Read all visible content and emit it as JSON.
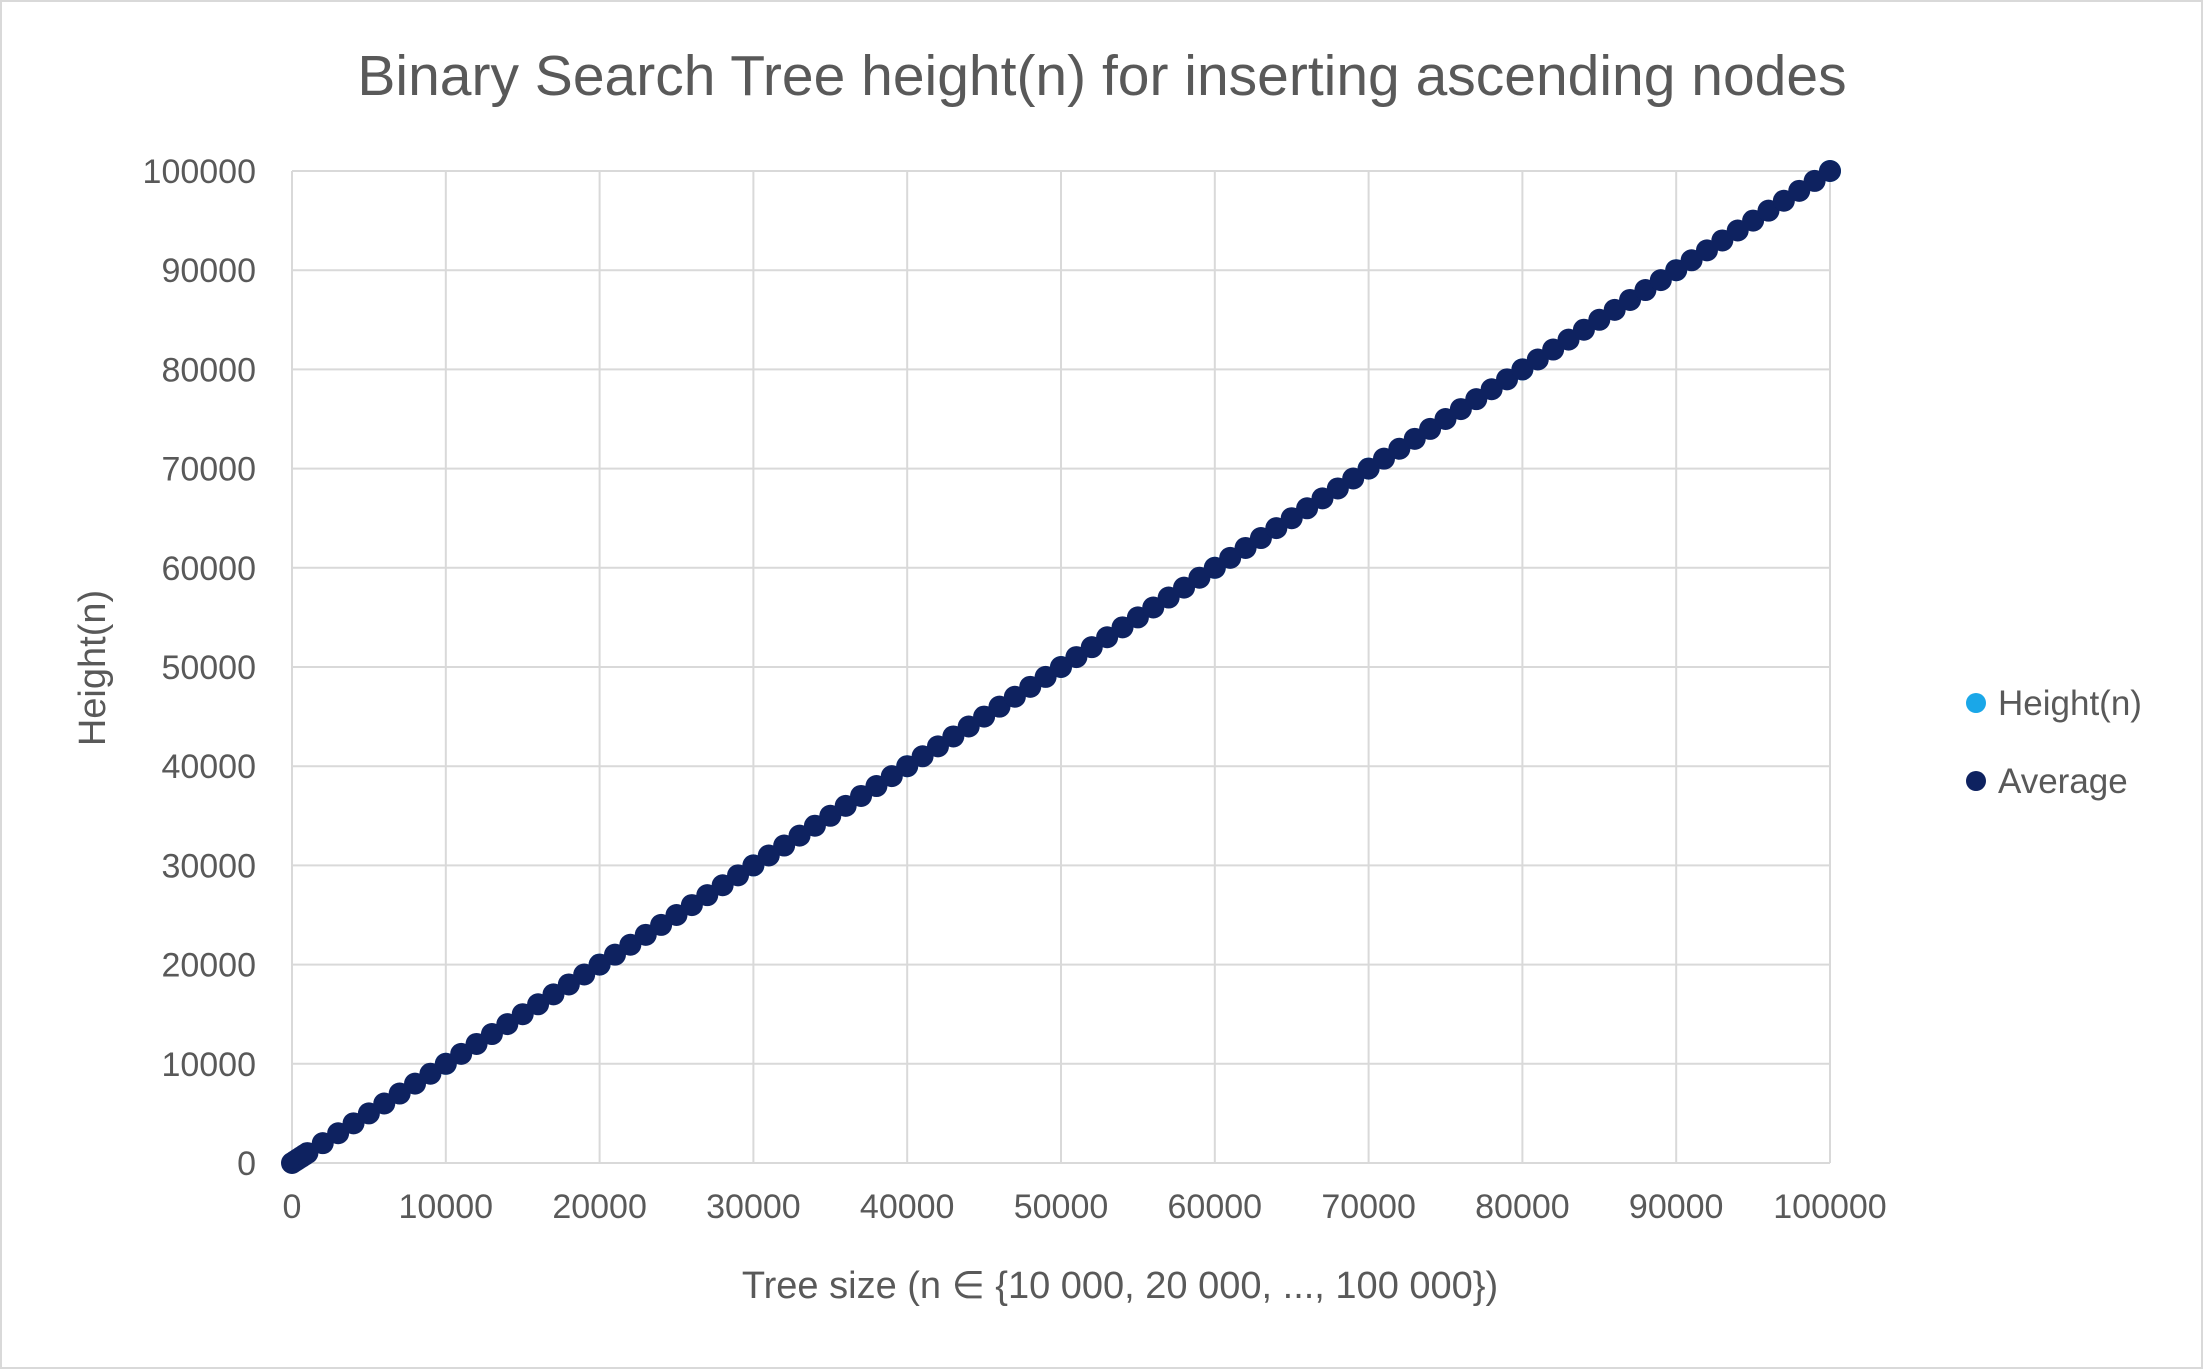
{
  "chart_data": {
    "type": "scatter",
    "title": "Binary Search Tree height(n) for inserting ascending nodes",
    "xlabel": "Tree size (n ∈ {10 000, 20 000, ..., 100 000})",
    "ylabel": "Height(n)",
    "xlim": [
      0,
      100000
    ],
    "ylim": [
      0,
      100000
    ],
    "xticks": [
      "0",
      "10000",
      "20000",
      "30000",
      "40000",
      "50000",
      "60000",
      "70000",
      "80000",
      "90000",
      "100000"
    ],
    "yticks": [
      "0",
      "10000",
      "20000",
      "30000",
      "40000",
      "50000",
      "60000",
      "70000",
      "80000",
      "90000",
      "100000"
    ],
    "grid": true,
    "legend_position": "right",
    "series": [
      {
        "name": "Height(n)",
        "color": "#1aa7e8",
        "x": [
          10000,
          20000,
          30000,
          40000,
          50000,
          60000,
          70000,
          80000,
          90000,
          100000
        ],
        "y": [
          10000,
          20000,
          30000,
          40000,
          50000,
          60000,
          70000,
          80000,
          90000,
          100000
        ]
      },
      {
        "name": "Average",
        "color": "#0e2260",
        "x": [
          0,
          200,
          400,
          600,
          800,
          1000,
          2000,
          3000,
          4000,
          5000,
          6000,
          7000,
          8000,
          9000,
          10000,
          11000,
          12000,
          13000,
          14000,
          15000,
          16000,
          17000,
          18000,
          19000,
          20000,
          21000,
          22000,
          23000,
          24000,
          25000,
          26000,
          27000,
          28000,
          29000,
          30000,
          31000,
          32000,
          33000,
          34000,
          35000,
          36000,
          37000,
          38000,
          39000,
          40000,
          41000,
          42000,
          43000,
          44000,
          45000,
          46000,
          47000,
          48000,
          49000,
          50000,
          51000,
          52000,
          53000,
          54000,
          55000,
          56000,
          57000,
          58000,
          59000,
          60000,
          61000,
          62000,
          63000,
          64000,
          65000,
          66000,
          67000,
          68000,
          69000,
          70000,
          71000,
          72000,
          73000,
          74000,
          75000,
          76000,
          77000,
          78000,
          79000,
          80000,
          81000,
          82000,
          83000,
          84000,
          85000,
          86000,
          87000,
          88000,
          89000,
          90000,
          91000,
          92000,
          93000,
          94000,
          95000,
          96000,
          97000,
          98000,
          99000,
          100000
        ],
        "y": [
          0,
          200,
          400,
          600,
          800,
          1000,
          2000,
          3000,
          4000,
          5000,
          6000,
          7000,
          8000,
          9000,
          10000,
          11000,
          12000,
          13000,
          14000,
          15000,
          16000,
          17000,
          18000,
          19000,
          20000,
          21000,
          22000,
          23000,
          24000,
          25000,
          26000,
          27000,
          28000,
          29000,
          30000,
          31000,
          32000,
          33000,
          34000,
          35000,
          36000,
          37000,
          38000,
          39000,
          40000,
          41000,
          42000,
          43000,
          44000,
          45000,
          46000,
          47000,
          48000,
          49000,
          50000,
          51000,
          52000,
          53000,
          54000,
          55000,
          56000,
          57000,
          58000,
          59000,
          60000,
          61000,
          62000,
          63000,
          64000,
          65000,
          66000,
          67000,
          68000,
          69000,
          70000,
          71000,
          72000,
          73000,
          74000,
          75000,
          76000,
          77000,
          78000,
          79000,
          80000,
          81000,
          82000,
          83000,
          84000,
          85000,
          86000,
          87000,
          88000,
          89000,
          90000,
          91000,
          92000,
          93000,
          94000,
          95000,
          96000,
          97000,
          98000,
          99000,
          100000
        ]
      }
    ]
  }
}
